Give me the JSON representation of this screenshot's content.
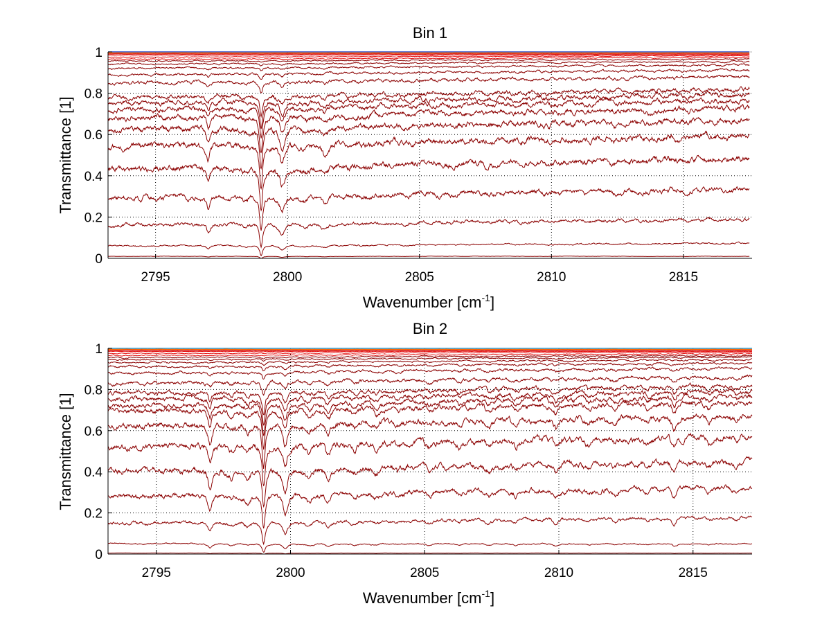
{
  "chart_data": [
    {
      "type": "line",
      "title": "Bin 1",
      "xlabel": "Wavenumber [cm",
      "xlabel_sup": "-1",
      "xlabel_close": "]",
      "ylabel": "Transmittance [1]",
      "xlim": [
        2793.2,
        2817.6
      ],
      "ylim": [
        0,
        1
      ],
      "x_range": [
        2793.2,
        2817.5
      ],
      "xticks": [
        2795,
        2800,
        2805,
        2810,
        2815
      ],
      "xtick_labels": [
        "2795",
        "2800",
        "2805",
        "2810",
        "2815"
      ],
      "yticks": [
        0,
        0.2,
        0.4,
        0.6,
        0.8,
        1
      ],
      "ytick_labels": [
        "0",
        "0.2",
        "0.4",
        "0.6",
        "0.8",
        "1"
      ],
      "grid": true,
      "series_color": "#8b0000",
      "top_colors": [
        "#1f3fbf",
        "#ff6a00",
        "#d62020"
      ],
      "baselines": [
        1.0,
        0.995,
        0.99,
        0.985,
        0.975,
        0.965,
        0.955,
        0.94,
        0.92,
        0.89,
        0.85,
        0.78,
        0.75,
        0.72,
        0.68,
        0.62,
        0.54,
        0.43,
        0.29,
        0.16,
        0.06,
        0.01
      ],
      "absorption_lines": [
        {
          "x": 2797.0,
          "depth": 0.35,
          "width": 0.08
        },
        {
          "x": 2798.4,
          "depth": 0.1,
          "width": 0.15
        },
        {
          "x": 2799.0,
          "depth": 1.0,
          "width": 0.07
        },
        {
          "x": 2799.8,
          "depth": 0.45,
          "width": 0.12
        },
        {
          "x": 2800.7,
          "depth": 0.15,
          "width": 0.2
        },
        {
          "x": 2801.4,
          "depth": 0.25,
          "width": 0.15
        },
        {
          "x": 2802.3,
          "depth": 0.06,
          "width": 0.15
        },
        {
          "x": 2803.0,
          "depth": 0.08,
          "width": 0.2
        },
        {
          "x": 2804.5,
          "depth": 0.06,
          "width": 0.15
        },
        {
          "x": 2806.2,
          "depth": 0.05,
          "width": 0.15
        },
        {
          "x": 2807.5,
          "depth": 0.06,
          "width": 0.15
        },
        {
          "x": 2808.7,
          "depth": 0.05,
          "width": 0.15
        },
        {
          "x": 2809.9,
          "depth": 0.08,
          "width": 0.15
        },
        {
          "x": 2811.3,
          "depth": 0.05,
          "width": 0.15
        },
        {
          "x": 2812.4,
          "depth": 0.06,
          "width": 0.15
        },
        {
          "x": 2813.7,
          "depth": 0.08,
          "width": 0.15
        },
        {
          "x": 2815.2,
          "depth": 0.06,
          "width": 0.15
        },
        {
          "x": 2816.6,
          "depth": 0.05,
          "width": 0.15
        }
      ]
    },
    {
      "type": "line",
      "title": "Bin 2",
      "xlabel": "Wavenumber [cm",
      "xlabel_sup": "-1",
      "xlabel_close": "]",
      "ylabel": "Transmittance [1]",
      "xlim": [
        2793.2,
        2817.2
      ],
      "ylim": [
        0,
        1
      ],
      "x_range": [
        2793.2,
        2817.2
      ],
      "xticks": [
        2795,
        2800,
        2805,
        2810,
        2815
      ],
      "xtick_labels": [
        "2795",
        "2800",
        "2805",
        "2810",
        "2815"
      ],
      "yticks": [
        0,
        0.2,
        0.4,
        0.6,
        0.8,
        1
      ],
      "ytick_labels": [
        "0",
        "0.2",
        "0.4",
        "0.6",
        "0.8",
        "1"
      ],
      "grid": true,
      "series_color": "#8b0000",
      "top_colors": [
        "#1f9fdf",
        "#ff6a00",
        "#d62020"
      ],
      "baselines": [
        1.0,
        0.995,
        0.99,
        0.985,
        0.975,
        0.965,
        0.955,
        0.945,
        0.93,
        0.91,
        0.88,
        0.83,
        0.78,
        0.75,
        0.72,
        0.69,
        0.62,
        0.52,
        0.4,
        0.28,
        0.15,
        0.05,
        0.005
      ],
      "absorption_lines": [
        {
          "x": 2797.0,
          "depth": 0.45,
          "width": 0.08
        },
        {
          "x": 2797.8,
          "depth": 0.15,
          "width": 0.12
        },
        {
          "x": 2798.4,
          "depth": 0.2,
          "width": 0.12
        },
        {
          "x": 2799.0,
          "depth": 1.0,
          "width": 0.07
        },
        {
          "x": 2799.8,
          "depth": 0.55,
          "width": 0.1
        },
        {
          "x": 2800.7,
          "depth": 0.2,
          "width": 0.15
        },
        {
          "x": 2801.4,
          "depth": 0.3,
          "width": 0.12
        },
        {
          "x": 2802.4,
          "depth": 0.15,
          "width": 0.12
        },
        {
          "x": 2803.2,
          "depth": 0.18,
          "width": 0.12
        },
        {
          "x": 2804.0,
          "depth": 0.12,
          "width": 0.12
        },
        {
          "x": 2805.2,
          "depth": 0.14,
          "width": 0.12
        },
        {
          "x": 2806.3,
          "depth": 0.12,
          "width": 0.12
        },
        {
          "x": 2807.4,
          "depth": 0.18,
          "width": 0.12
        },
        {
          "x": 2808.4,
          "depth": 0.15,
          "width": 0.12
        },
        {
          "x": 2809.9,
          "depth": 0.25,
          "width": 0.1
        },
        {
          "x": 2811.1,
          "depth": 0.15,
          "width": 0.12
        },
        {
          "x": 2812.1,
          "depth": 0.15,
          "width": 0.12
        },
        {
          "x": 2813.3,
          "depth": 0.12,
          "width": 0.12
        },
        {
          "x": 2814.3,
          "depth": 0.3,
          "width": 0.1
        },
        {
          "x": 2815.6,
          "depth": 0.15,
          "width": 0.12
        },
        {
          "x": 2816.6,
          "depth": 0.12,
          "width": 0.12
        }
      ]
    }
  ]
}
